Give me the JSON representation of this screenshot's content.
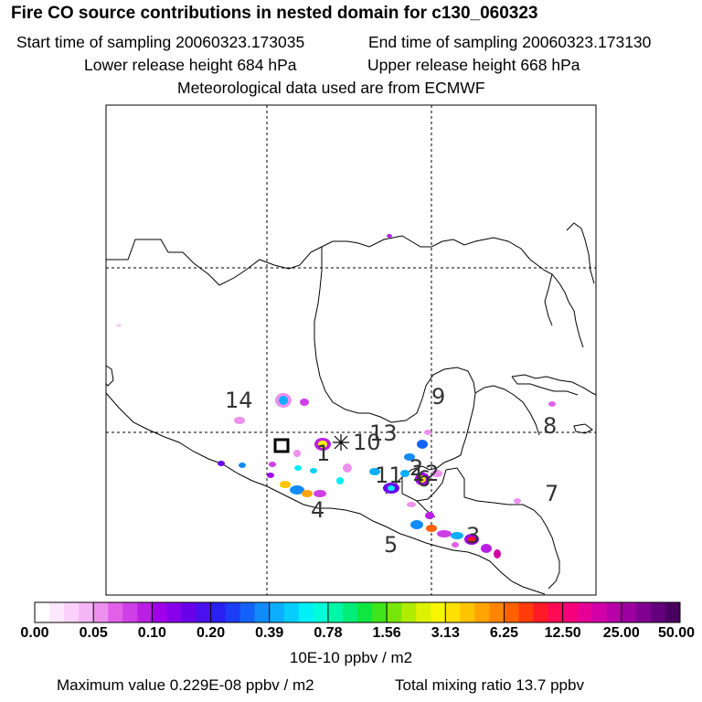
{
  "title": "Fire CO source contributions in nested domain for c130_060323",
  "sampling": {
    "start": "Start time of sampling 20060323.173035",
    "end": "End time of sampling 20060323.173130"
  },
  "release": {
    "lower": "Lower release height  684 hPa",
    "upper": "Upper release height  668 hPa"
  },
  "met_note": "Meteorological data used are from ECMWF",
  "map": {
    "source_labels": [
      "14",
      "1",
      "10",
      "13",
      "9",
      "8",
      "7",
      "4",
      "5",
      "11",
      "12",
      "2",
      "6",
      "3"
    ]
  },
  "colorbar": {
    "tick_labels": [
      "0.00",
      "0.05",
      "0.10",
      "0.20",
      "0.39",
      "0.78",
      "1.56",
      "3.13",
      "6.25",
      "12.50",
      "25.00",
      "50.00"
    ],
    "colors": [
      "#ffffff",
      "#fde8fd",
      "#fbd0fb",
      "#f6b6f6",
      "#ee90ee",
      "#e060e8",
      "#cf3fe6",
      "#bb1fe4",
      "#a000e8",
      "#8600ea",
      "#6a00ea",
      "#4a10ee",
      "#2a20f2",
      "#1c3cf6",
      "#1463f8",
      "#108cfa",
      "#0aaefc",
      "#06cefc",
      "#00f0f8",
      "#00fcd8",
      "#00f6a8",
      "#00ee78",
      "#10e640",
      "#40e41a",
      "#78e60a",
      "#b0ec00",
      "#dcf200",
      "#f8f600",
      "#ffe000",
      "#ffc400",
      "#ffa400",
      "#ff8400",
      "#ff6000",
      "#ff3c0a",
      "#ff1a28",
      "#ff0a54",
      "#f6007a",
      "#e60096",
      "#d000a6",
      "#b800a8",
      "#9c00a0",
      "#800090",
      "#64007c",
      "#4a0060"
    ],
    "units": "10E-10 ppbv / m2"
  },
  "footer": {
    "max": "Maximum value  0.229E-08 ppbv / m2",
    "total": "Total mixing ratio       13.7 ppbv"
  }
}
